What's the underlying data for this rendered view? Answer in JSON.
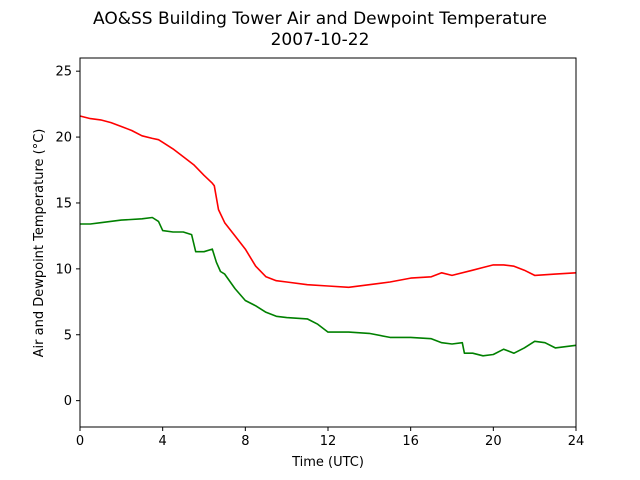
{
  "chart_data": {
    "type": "line",
    "title": "AO&SS Building Tower Air and Dewpoint Temperature",
    "subtitle": "2007-10-22",
    "xlabel": "Time (UTC)",
    "ylabel": "Air and Dewpoint Temperature (°C)",
    "xlim": [
      0,
      24
    ],
    "ylim": [
      -2,
      26
    ],
    "xticks": [
      0,
      4,
      8,
      12,
      16,
      20,
      24
    ],
    "yticks": [
      0,
      5,
      10,
      15,
      20,
      25
    ],
    "grid": false,
    "series": [
      {
        "color": "#ff0000",
        "x": [
          0,
          0.5,
          1,
          1.5,
          2,
          2.5,
          3,
          3.5,
          3.8,
          4,
          4.5,
          5,
          5.5,
          6,
          6.4,
          6.5,
          6.7,
          7,
          7.5,
          8,
          8.5,
          9,
          9.5,
          10,
          11,
          12,
          13,
          14,
          15,
          16,
          17,
          17.5,
          18,
          19,
          19.5,
          20,
          20.5,
          21,
          21.5,
          22,
          23,
          24
        ],
        "y": [
          21.6,
          21.4,
          21.3,
          21.1,
          20.8,
          20.5,
          20.1,
          19.9,
          19.8,
          19.6,
          19.1,
          18.5,
          17.9,
          17.1,
          16.5,
          16.3,
          14.5,
          13.5,
          12.5,
          11.5,
          10.2,
          9.4,
          9.1,
          9.0,
          8.8,
          8.7,
          8.6,
          8.8,
          9.0,
          9.3,
          9.4,
          9.7,
          9.5,
          9.9,
          10.1,
          10.3,
          10.3,
          10.2,
          9.9,
          9.5,
          9.6,
          9.7
        ]
      },
      {
        "color": "#008000",
        "x": [
          0,
          0.5,
          1,
          2,
          3,
          3.5,
          3.8,
          4,
          4.5,
          5,
          5.4,
          5.6,
          6,
          6.4,
          6.6,
          6.8,
          7,
          7.5,
          8,
          8.5,
          9,
          9.5,
          10,
          11,
          11.5,
          12,
          13,
          14,
          15,
          16,
          17,
          17.5,
          18,
          18.5,
          18.6,
          19,
          19.5,
          20,
          20.5,
          21,
          21.5,
          22,
          22.5,
          23,
          24
        ],
        "y": [
          13.4,
          13.4,
          13.5,
          13.7,
          13.8,
          13.9,
          13.6,
          12.9,
          12.8,
          12.8,
          12.6,
          11.3,
          11.3,
          11.5,
          10.5,
          9.8,
          9.6,
          8.5,
          7.6,
          7.2,
          6.7,
          6.4,
          6.3,
          6.2,
          5.8,
          5.2,
          5.2,
          5.1,
          4.8,
          4.8,
          4.7,
          4.4,
          4.3,
          4.4,
          3.6,
          3.6,
          3.4,
          3.5,
          3.9,
          3.6,
          4.0,
          4.5,
          4.4,
          4.0,
          4.2
        ]
      }
    ]
  }
}
